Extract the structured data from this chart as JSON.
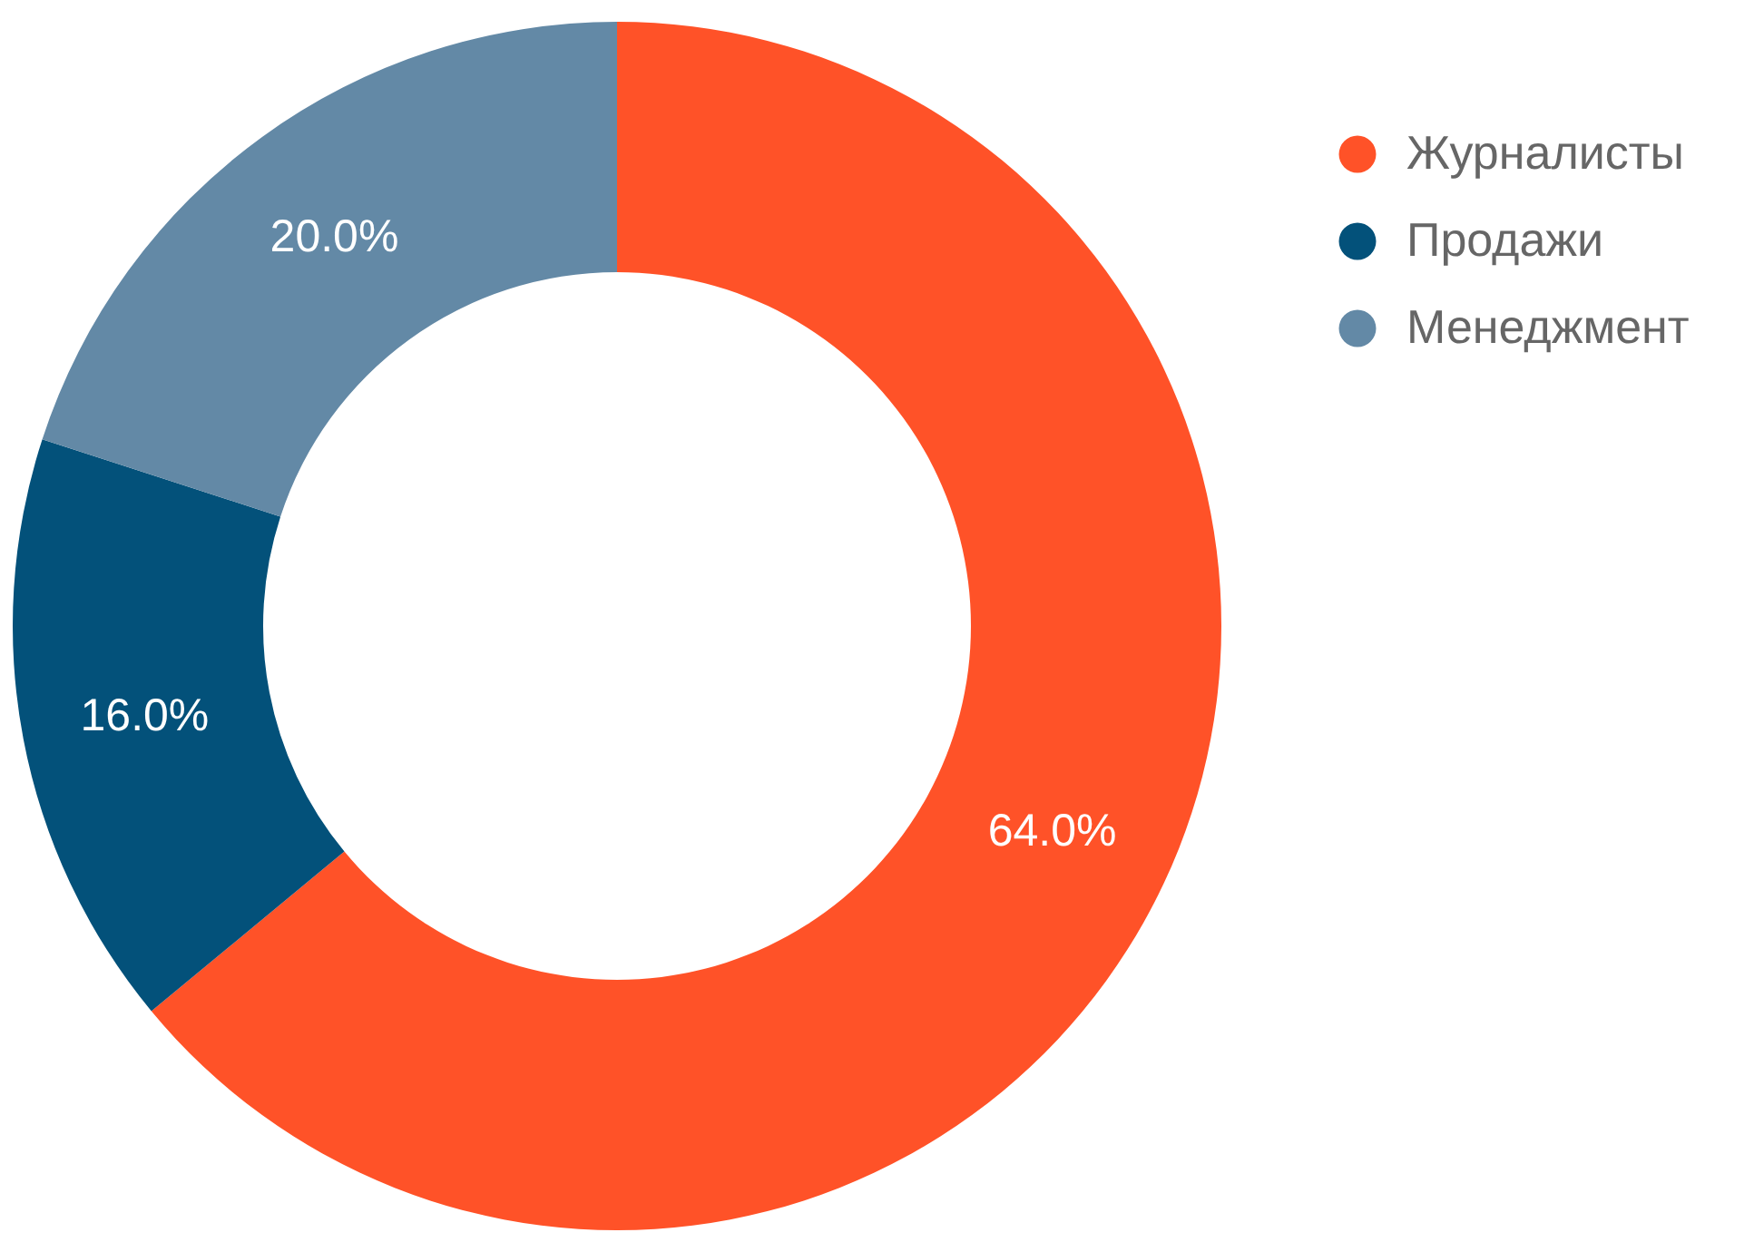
{
  "chart_data": {
    "type": "donut",
    "categories": [
      "Журналисты",
      "Продажи",
      "Менеджмент"
    ],
    "values": [
      64,
      16,
      20
    ],
    "colors": [
      "#ff5228",
      "#03517a",
      "#6389a6"
    ],
    "value_labels": [
      "64.0%",
      "16.0%",
      "20.0%"
    ],
    "legend": "top right"
  }
}
